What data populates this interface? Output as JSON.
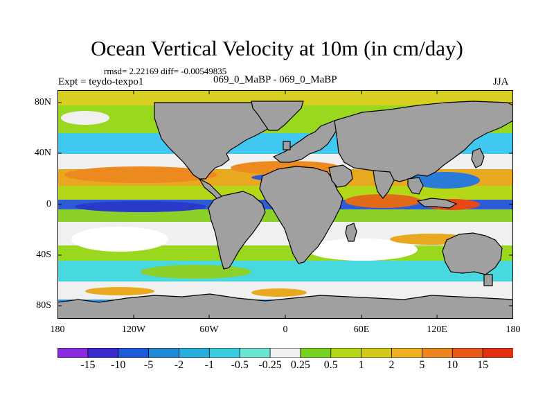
{
  "title": "Ocean Vertical Velocity at 10m (in cm/day)",
  "stats": "rmsd= 2.22169 diff= -0.00549835",
  "experiment": "Expt = teydo-texpo1",
  "comparison": "069_0_MaBP - 069_0_MaBP",
  "season": "JJA",
  "map": {
    "lon_range": [
      -180,
      180
    ],
    "lat_range": [
      -90,
      90
    ],
    "lat_ticks": [
      {
        "value": 80,
        "label": "80N"
      },
      {
        "value": 40,
        "label": "40N"
      },
      {
        "value": 0,
        "label": "0"
      },
      {
        "value": -40,
        "label": "40S"
      },
      {
        "value": -80,
        "label": "80S"
      }
    ],
    "lon_ticks": [
      {
        "value": -180,
        "label": "180"
      },
      {
        "value": -120,
        "label": "120W"
      },
      {
        "value": -60,
        "label": "60W"
      },
      {
        "value": 0,
        "label": "0"
      },
      {
        "value": 60,
        "label": "60E"
      },
      {
        "value": 120,
        "label": "120E"
      },
      {
        "value": 180,
        "label": "180"
      }
    ],
    "land_color": "#a0a0a0"
  },
  "colorbar": {
    "labels": [
      "-15",
      "-10",
      "-5",
      "-2",
      "-1",
      "-0.5",
      "-0.25",
      "0.25",
      "0.5",
      "1",
      "2",
      "5",
      "10",
      "15"
    ],
    "colors": [
      "#8a2be2",
      "#3a2ad0",
      "#1f5ad8",
      "#1e8ad8",
      "#28aedc",
      "#38cce0",
      "#6ce4d4",
      "#f0f0f0",
      "#78d020",
      "#b4d818",
      "#d4c81c",
      "#ecb020",
      "#ec8420",
      "#e85818",
      "#e43010"
    ]
  }
}
